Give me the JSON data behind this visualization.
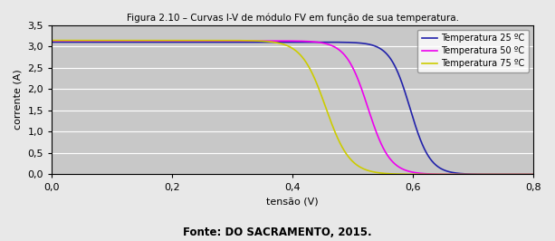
{
  "title": "Figura 2.10 – Curvas I-V de módulo FV em função de sua temperatura.",
  "xlabel": "tensão (V)",
  "ylabel": "corrente (A)",
  "fonte": "Fonte: DO SACRAMENTO, 2015.",
  "xlim": [
    0,
    0.8
  ],
  "ylim": [
    0,
    3.5
  ],
  "xticks": [
    0,
    0.2,
    0.4,
    0.6,
    0.8
  ],
  "yticks": [
    0,
    0.5,
    1.0,
    1.5,
    2.0,
    2.5,
    3.0,
    3.5
  ],
  "bg_color": "#c8c8c8",
  "fig_color": "#e8e8e8",
  "curves": [
    {
      "label": "Temperatura 25 ºC",
      "color": "#2222AA",
      "Isc": 3.1,
      "Voc": 0.595,
      "sharpness": 60
    },
    {
      "label": "Temperatura 50 ºC",
      "color": "#EE00EE",
      "Isc": 3.13,
      "Voc": 0.525,
      "sharpness": 55
    },
    {
      "label": "Temperatura 75 ºC",
      "color": "#CCCC00",
      "Isc": 3.14,
      "Voc": 0.455,
      "sharpness": 50
    }
  ],
  "legend_bg": "#ffffff",
  "title_fontsize": 7.5,
  "axis_label_fontsize": 8,
  "tick_fontsize": 8,
  "legend_fontsize": 7,
  "fonte_fontsize": 8.5
}
